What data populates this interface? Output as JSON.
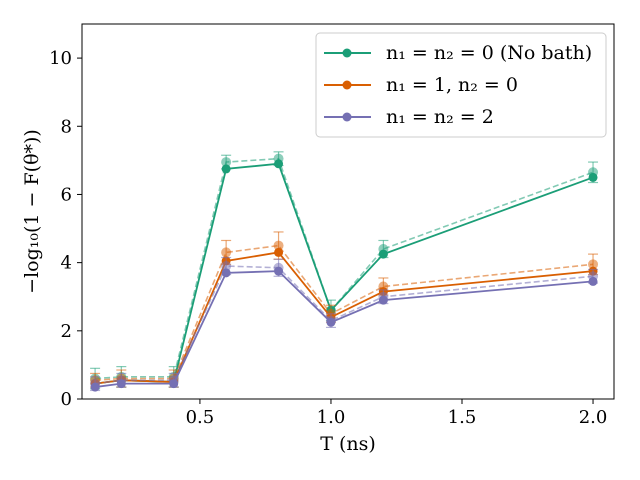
{
  "chart_data": {
    "type": "line",
    "xlabel": "T (ns)",
    "ylabel": "−log₁₀(1 − F(θ*))",
    "xlim": [
      0.05,
      2.08
    ],
    "ylim": [
      0,
      11
    ],
    "xticks": [
      0.5,
      1.0,
      1.5,
      2.0
    ],
    "xtick_labels": [
      "0.5",
      "1.0",
      "1.5",
      "2.0"
    ],
    "yticks": [
      0,
      2,
      4,
      6,
      8,
      10
    ],
    "ytick_labels": [
      "0",
      "2",
      "4",
      "6",
      "8",
      "10"
    ],
    "legend_position": "top-right",
    "x": [
      0.1,
      0.2,
      0.4,
      0.6,
      0.8,
      1.0,
      1.2,
      2.0
    ],
    "series": [
      {
        "name": "n₁ = n₂ = 0 (No bath)",
        "color": "#1b9e77",
        "values": [
          0.45,
          0.55,
          0.5,
          6.75,
          6.9,
          2.6,
          4.25,
          6.5
        ],
        "dashed_values": [
          0.6,
          0.65,
          0.65,
          6.95,
          7.05,
          2.6,
          4.4,
          6.65
        ],
        "errors": [
          0.3,
          0.3,
          0.3,
          0.2,
          0.2,
          0.3,
          0.25,
          0.3
        ]
      },
      {
        "name": "n₁ = 1, n₂ = 0",
        "color": "#d95f02",
        "values": [
          0.45,
          0.55,
          0.5,
          4.05,
          4.3,
          2.4,
          3.15,
          3.75
        ],
        "dashed_values": [
          0.55,
          0.6,
          0.6,
          4.3,
          4.5,
          2.5,
          3.3,
          3.95
        ],
        "errors": [
          0.2,
          0.25,
          0.25,
          0.35,
          0.4,
          0.25,
          0.25,
          0.3
        ]
      },
      {
        "name": "n₁ = n₂ = 2",
        "color": "#7570b3",
        "values": [
          0.35,
          0.45,
          0.45,
          3.7,
          3.75,
          2.25,
          2.9,
          3.45
        ],
        "dashed_values": [
          0.45,
          0.55,
          0.55,
          3.9,
          3.85,
          2.3,
          3.0,
          3.6
        ],
        "errors": [
          0.2,
          0.2,
          0.2,
          0.25,
          0.25,
          0.2,
          0.2,
          0.2
        ]
      }
    ]
  }
}
